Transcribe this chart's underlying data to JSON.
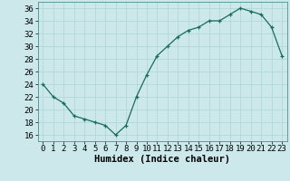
{
  "x": [
    0,
    1,
    2,
    3,
    4,
    5,
    6,
    7,
    8,
    9,
    10,
    11,
    12,
    13,
    14,
    15,
    16,
    17,
    18,
    19,
    20,
    21,
    22,
    23
  ],
  "y": [
    24,
    22,
    21,
    19,
    18.5,
    18,
    17.5,
    16,
    17.5,
    22,
    25.5,
    28.5,
    30,
    31.5,
    32.5,
    33,
    34,
    34,
    35,
    36,
    35.5,
    35,
    33,
    28.5
  ],
  "line_color": "#1a6b5a",
  "marker_color": "#1a6b5a",
  "bg_color": "#cce8ea",
  "grid_color": "#b0d8d8",
  "xlabel": "Humidex (Indice chaleur)",
  "ylim": [
    15,
    37
  ],
  "xlim": [
    -0.5,
    23.5
  ],
  "yticks": [
    16,
    18,
    20,
    22,
    24,
    26,
    28,
    30,
    32,
    34,
    36
  ],
  "xticks": [
    0,
    1,
    2,
    3,
    4,
    5,
    6,
    7,
    8,
    9,
    10,
    11,
    12,
    13,
    14,
    15,
    16,
    17,
    18,
    19,
    20,
    21,
    22,
    23
  ],
  "tick_fontsize": 6.5,
  "xlabel_fontsize": 7.5,
  "linewidth": 0.9,
  "markersize": 3.5
}
